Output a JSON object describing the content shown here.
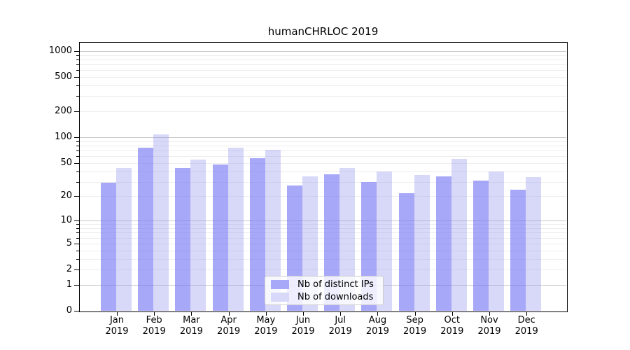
{
  "figure": {
    "title": "humanCHRLOC 2019"
  },
  "chart_data": {
    "type": "bar",
    "title": "humanCHRLOC 2019",
    "categories": [
      "Jan 2019",
      "Feb 2019",
      "Mar 2019",
      "Apr 2019",
      "May 2019",
      "Jun 2019",
      "Jul 2019",
      "Aug 2019",
      "Sep 2019",
      "Oct 2019",
      "Nov 2019",
      "Dec 2019"
    ],
    "series": [
      {
        "name": "Nb of distinct IPs",
        "color": "#a8a8f8",
        "values": [
          29,
          76,
          44,
          48,
          57,
          27,
          37,
          30,
          22,
          35,
          31,
          24
        ]
      },
      {
        "name": "Nb of downloads",
        "color": "#d8d8f8",
        "values": [
          44,
          108,
          55,
          75,
          71,
          35,
          44,
          40,
          36,
          56,
          40,
          34
        ]
      }
    ],
    "yscale": "log10(1+x)",
    "yticks": [
      0,
      1,
      2,
      5,
      10,
      20,
      50,
      100,
      200,
      500,
      1000
    ],
    "ylim": [
      0,
      1270
    ],
    "xlabel": "",
    "ylabel": "",
    "grid": true,
    "legend_position": "lower center"
  }
}
